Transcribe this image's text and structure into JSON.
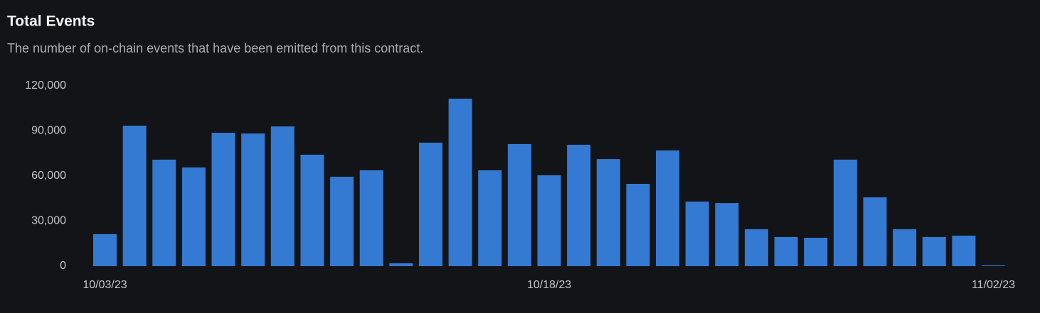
{
  "chart_data": {
    "type": "bar",
    "title": "Total Events",
    "subtitle": "The number of on-chain events that have been emitted from this contract.",
    "categories": [
      "10/03/23",
      null,
      null,
      null,
      null,
      null,
      null,
      null,
      null,
      null,
      null,
      null,
      null,
      null,
      null,
      "10/18/23",
      null,
      null,
      null,
      null,
      null,
      null,
      null,
      null,
      null,
      null,
      null,
      null,
      null,
      null,
      "11/02/23"
    ],
    "values": [
      21300,
      93500,
      70900,
      65700,
      88800,
      88300,
      93000,
      74200,
      59500,
      63800,
      1900,
      82200,
      111500,
      63800,
      81300,
      60500,
      80800,
      71300,
      54800,
      77000,
      43000,
      42000,
      24600,
      19400,
      18900,
      70900,
      45800,
      24600,
      19400,
      20300,
      500
    ],
    "color": "#3479d2",
    "ylim": [
      0,
      120000
    ],
    "yticks": [
      0,
      {
        "value": 30000,
        "label": "30,000"
      },
      {
        "value": 60000,
        "label": "60,000"
      },
      {
        "value": 90000,
        "label": "90,000"
      },
      {
        "value": 120000,
        "label": "120,000"
      }
    ],
    "grid": false
  }
}
